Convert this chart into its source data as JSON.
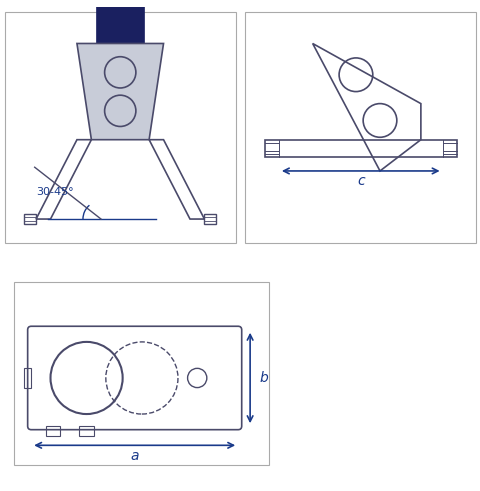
{
  "bg_color": "#ffffff",
  "line_color": "#4a4a6a",
  "blue_color": "#1a3a8a",
  "light_gray": "#c8ccd8",
  "dark_blue": "#1a2060",
  "box_line_color": "#aaaaaa",
  "dim_color": "#1a3a8a",
  "angle_text": "30-45°",
  "dim_a": "a",
  "dim_b": "b",
  "dim_c": "c"
}
